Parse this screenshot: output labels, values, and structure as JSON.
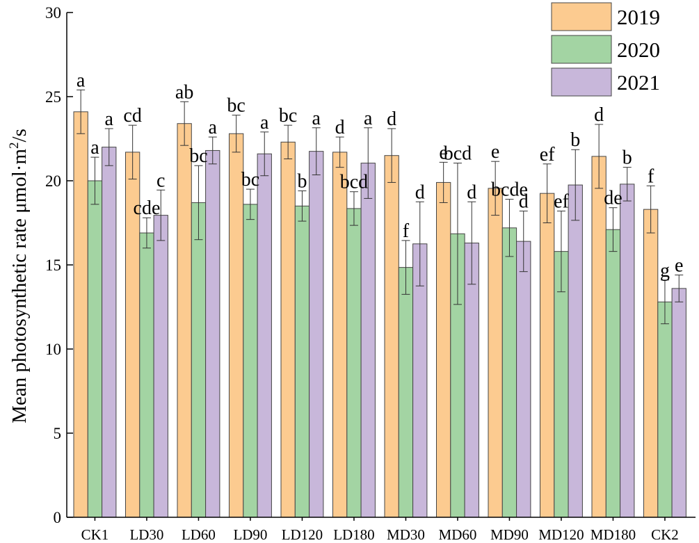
{
  "chart_data": {
    "type": "bar",
    "title": "",
    "xlabel": "",
    "ylabel_main": "Mean photosynthetic rate  μmol·m",
    "ylabel_sup": "2",
    "ylabel_tail": "/s",
    "ylim": [
      0,
      30
    ],
    "yticks": [
      0,
      5,
      10,
      15,
      20,
      25,
      30
    ],
    "categories": [
      "CK1",
      "LD30",
      "LD60",
      "LD90",
      "LD120",
      "LD180",
      "MD30",
      "MD60",
      "MD90",
      "MD120",
      "MD180",
      "CK2"
    ],
    "series": [
      {
        "name": "2019",
        "color": "#FCCB90",
        "values": [
          24.1,
          21.7,
          23.4,
          22.8,
          22.3,
          21.7,
          21.5,
          19.9,
          19.55,
          19.25,
          21.45,
          18.3
        ],
        "errors": [
          1.3,
          1.6,
          1.3,
          1.1,
          1.0,
          0.9,
          1.6,
          1.2,
          1.6,
          1.75,
          1.9,
          1.4
        ],
        "letters": [
          "a",
          "cd",
          "ab",
          "bc",
          "bc",
          "d",
          "d",
          "e",
          "e",
          "ef",
          "d",
          "f"
        ]
      },
      {
        "name": "2020",
        "color": "#A3D4A3",
        "values": [
          20.0,
          16.9,
          18.7,
          18.6,
          18.5,
          18.35,
          14.85,
          16.85,
          17.2,
          15.8,
          17.1,
          12.8
        ],
        "errors": [
          1.4,
          0.9,
          2.2,
          0.9,
          0.9,
          1.0,
          1.6,
          4.2,
          1.7,
          2.4,
          1.3,
          1.3
        ],
        "letters": [
          "a",
          "cde",
          "bc",
          "bc",
          "b",
          "bcd",
          "f",
          "bcd",
          "bcde",
          "ef",
          "de",
          "g"
        ]
      },
      {
        "name": "2021",
        "color": "#C8B7DA",
        "values": [
          22.0,
          17.95,
          21.8,
          21.6,
          21.75,
          21.05,
          16.25,
          16.3,
          16.4,
          19.75,
          19.8,
          13.6
        ],
        "errors": [
          1.1,
          1.5,
          0.8,
          1.3,
          1.4,
          2.1,
          2.5,
          2.45,
          1.8,
          2.1,
          1.0,
          0.8
        ],
        "letters": [
          "a",
          "c",
          "a",
          "a",
          "a",
          "a",
          "d",
          "d",
          "d",
          "b",
          "b",
          "e"
        ]
      }
    ],
    "legend_position": "top-right"
  }
}
